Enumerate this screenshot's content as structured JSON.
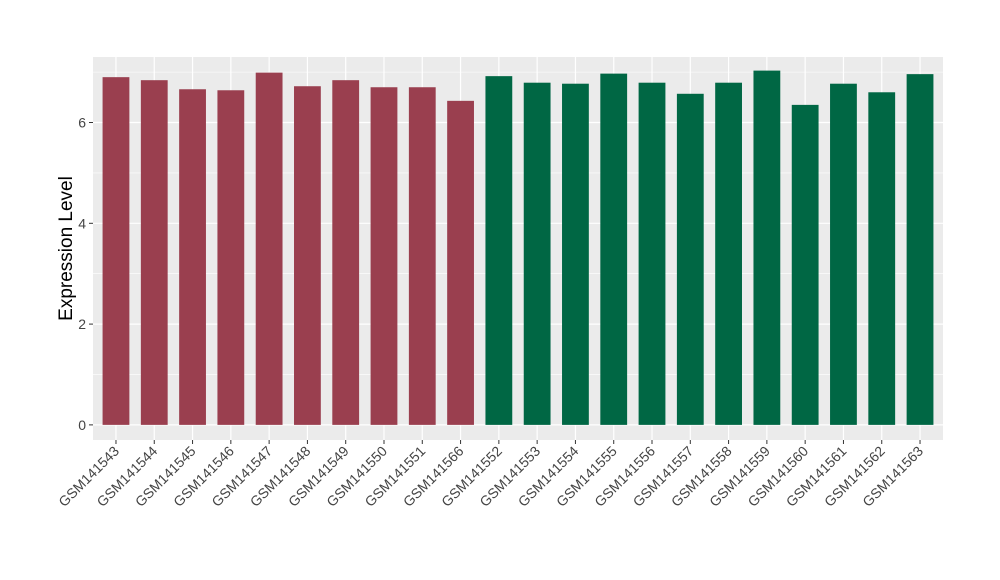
{
  "chart_data": {
    "type": "bar",
    "title": "",
    "xlabel": "",
    "ylabel": "Expression Level",
    "ylim": [
      -0.3,
      7.3
    ],
    "yticks": [
      0,
      2,
      4,
      6
    ],
    "grid": true,
    "legend": "none",
    "categories": [
      "GSM141543",
      "GSM141544",
      "GSM141545",
      "GSM141546",
      "GSM141547",
      "GSM141548",
      "GSM141549",
      "GSM141550",
      "GSM141551",
      "GSM141566",
      "GSM141552",
      "GSM141553",
      "GSM141554",
      "GSM141555",
      "GSM141556",
      "GSM141557",
      "GSM141558",
      "GSM141559",
      "GSM141560",
      "GSM141561",
      "GSM141562",
      "GSM141563"
    ],
    "values": [
      6.9,
      6.84,
      6.66,
      6.64,
      6.99,
      6.72,
      6.84,
      6.7,
      6.7,
      6.43,
      6.92,
      6.79,
      6.77,
      6.97,
      6.79,
      6.57,
      6.79,
      7.03,
      6.35,
      6.77,
      6.6,
      6.96
    ],
    "bar_colors": [
      "#9a3f4f",
      "#9a3f4f",
      "#9a3f4f",
      "#9a3f4f",
      "#9a3f4f",
      "#9a3f4f",
      "#9a3f4f",
      "#9a3f4f",
      "#9a3f4f",
      "#9a3f4f",
      "#006744",
      "#006744",
      "#006744",
      "#006744",
      "#006744",
      "#006744",
      "#006744",
      "#006744",
      "#006744",
      "#006744",
      "#006744",
      "#006744"
    ]
  },
  "colors": {
    "panel_background": "#ebebeb",
    "gridline": "#ffffff",
    "group_1": "#9a3f4f",
    "group_2": "#006744"
  }
}
